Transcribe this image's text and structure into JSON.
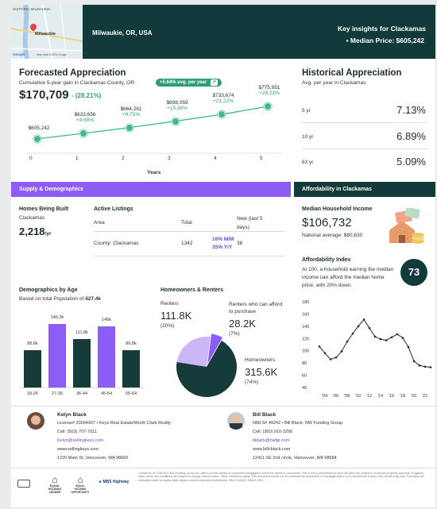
{
  "header": {
    "location": "Milwaukie, OR, USA",
    "insights_title": "Key insights for Clackamas",
    "median_price_label": "• Median Price: $605,242",
    "map_labels": [
      "HISTORIC MILWAUKIE",
      "Milwaukie",
      "Google",
      "Map data ©2024 Google"
    ]
  },
  "forecast": {
    "title": "Forecasted Appreciation",
    "subtitle": "Cumulative 5-year gain in Clackamas County, OR",
    "badge": "+5.64% avg. per year",
    "value": "$170,709",
    "gain": "- (28.21%)",
    "xlabel": "Years",
    "points": [
      {
        "price": "$605,242",
        "pct": ""
      },
      {
        "price": "$633,656",
        "pct": "+4.69%"
      },
      {
        "price": "$664,261",
        "pct": "+9.75%"
      },
      {
        "price": "$698,059",
        "pct": "+15.34%"
      },
      {
        "price": "$733,674",
        "pct": "+21.22%"
      },
      {
        "price": "$775,951",
        "pct": "+28.21%"
      }
    ],
    "ticks": [
      "0",
      "1",
      "2",
      "3",
      "4",
      "5"
    ]
  },
  "historical": {
    "title": "Historical Appreciation",
    "subtitle": "Avg. per year in Clackamas",
    "rows": [
      {
        "label": "5 yr",
        "value": "7.13%"
      },
      {
        "label": "10 yr",
        "value": "6.89%"
      },
      {
        "label": "63 yr",
        "value": "5.09%"
      }
    ]
  },
  "supply": {
    "bar_label": "Supply & Demographics",
    "homes_title": "Homes Being Built",
    "homes_area": "Clackamas",
    "homes_value": "2,218",
    "homes_unit": "/yr",
    "listings_title": "Active Listings",
    "col_area": "Area",
    "col_total": "Total",
    "col_new": "New (last 5 days)",
    "row_area": "County: Clackamas",
    "row_total": "1342",
    "row_mm": "16% M/M",
    "row_yy": "35% Y/Y",
    "row_new": "38"
  },
  "demographics": {
    "title": "Demographics by Age",
    "subtitle_prefix": "Based on total Population of",
    "subtitle_value": "427.4k",
    "colors": [
      "#163b3b",
      "#8b5cf6"
    ]
  },
  "chart_data": [
    {
      "type": "bar",
      "title": "Demographics by Age",
      "categories": [
        "18-26",
        "27-35",
        "36-44",
        "45-54",
        "55-64"
      ],
      "values": [
        86.8,
        146.3,
        111.8,
        140,
        86.8
      ],
      "labels": [
        "86.8k",
        "146.3k",
        "111.8k",
        "140k",
        "86.8k"
      ]
    },
    {
      "type": "pie",
      "title": "Homeowners & Renters",
      "slices": [
        {
          "name": "Renters",
          "value": 111.8,
          "label": "111.8K",
          "pct": "(20%)"
        },
        {
          "name": "Renters who can afford to purchase",
          "value": 28.2,
          "label": "28.2K",
          "pct": "(7%)"
        },
        {
          "name": "Homeowners",
          "value": 315.6,
          "label": "315.6K",
          "pct": "(74%)"
        }
      ]
    },
    {
      "type": "line",
      "title": "Affordability Index",
      "x": [
        2003,
        2004,
        2005,
        2006,
        2007,
        2008,
        2009,
        2010,
        2011,
        2012,
        2013,
        2014,
        2015,
        2016,
        2017,
        2018,
        2019,
        2020,
        2021,
        2022,
        2023
      ],
      "values": [
        107,
        96,
        86,
        89,
        99,
        115,
        128,
        140,
        151,
        137,
        123,
        119,
        117,
        122,
        127,
        121,
        106,
        83,
        76,
        74,
        73
      ],
      "ylim": [
        40,
        180
      ],
      "yticks": [
        "180",
        "160",
        "140",
        "120",
        "100",
        "80",
        "60",
        "40"
      ],
      "xticks": [
        "'04",
        "'06",
        "'08",
        "'10",
        "'12",
        "'14",
        "'16",
        "'18",
        "'20",
        "'22"
      ]
    }
  ],
  "homeowners": {
    "title": "Homeowners & Renters",
    "renters_label": "Renters",
    "renters_value": "111.8K",
    "renters_pct": "(20%)",
    "afford_label": "Renters who can afford to purchase",
    "afford_value": "28.2K",
    "afford_pct": "(7%)",
    "owners_label": "Homeowners",
    "owners_value": "315.6K",
    "owners_pct": "(74%)"
  },
  "affordability": {
    "bar_label": "Affordability in Clackamas",
    "income_title": "Median Household Income",
    "income_value": "$106,732",
    "income_natl": "National average: $80,630",
    "index_title": "Affordability Index",
    "index_text": "At 100, a household earning the median income can afford the median home price, with 20% down.",
    "index_value": "73"
  },
  "agents": [
    {
      "name": "Kelyn Black",
      "line1": "License# 23004427 • Keys Real Estate/Worth Clark Realty",
      "cell": "Cell: (503) 707-7011",
      "email": "Kelyn@sellingkeys.com",
      "web": "www.sellingkeys.com",
      "addr": "1220 Main St, Vancouver, WA 98660"
    },
    {
      "name": "Bill Black",
      "line1": "NMLS# 49242 • Bill Black- NW Funding Group",
      "cell": "Cell: (360) 910-3290",
      "email": "bblack@nwfgi.com",
      "web": "www.billcblack.com",
      "addr": "12411 SE 2nd circle, Vancouver, WA 98684"
    }
  ],
  "footer": {
    "logos": [
      "EQUAL HOUSING LENDER",
      "EQUAL HOUSING OPPORTUNITY",
      "MBS Highway"
    ],
    "disclaimer": "Current as of 7/25/2024. NW Funding Group Inc. offers a broad variety of residential mortgages to meet the needs of consumers. This is not a commitment to lend. All loans are subject to credit and property approval. Programs, rates, terms and conditions are subject to change without notice. Other restrictions apply. This document should not be construed as investment or mortgage advice or a commitment to lend. Your results may vary. Forecasts are estimates based on public data; please consult a licensed professional. NMLS 49242 / NMLS 1909."
  }
}
